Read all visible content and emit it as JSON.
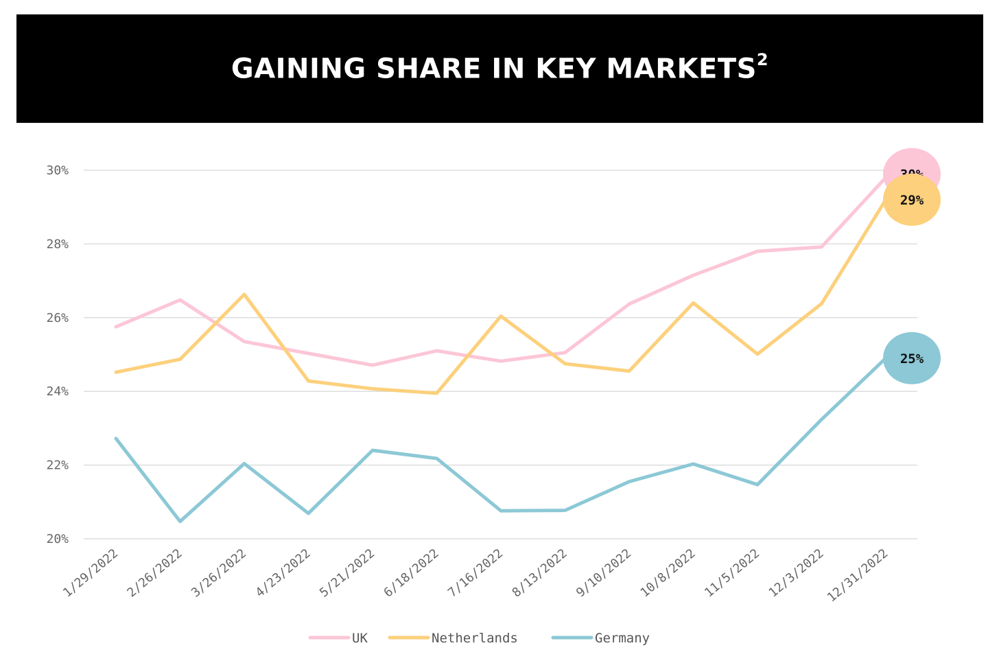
{
  "title": "GAINING SHARE IN KEY MARKETS",
  "title_superscript": "2",
  "colors": {
    "UK": "#fcc6d6",
    "Netherlands": "#fcd07c",
    "Germany": "#8cc8d6"
  },
  "chart_data": {
    "type": "line",
    "categories": [
      "1/29/2022",
      "2/26/2022",
      "3/26/2022",
      "4/23/2022",
      "5/21/2022",
      "6/18/2022",
      "7/16/2022",
      "8/13/2022",
      "9/10/2022",
      "10/8/2022",
      "11/5/2022",
      "12/3/2022",
      "12/31/2022"
    ],
    "series": [
      {
        "name": "UK",
        "values": [
          25.75,
          26.48,
          25.35,
          25.03,
          24.71,
          25.1,
          24.82,
          25.05,
          26.37,
          27.15,
          27.8,
          27.92,
          29.8
        ]
      },
      {
        "name": "Netherlands",
        "values": [
          24.52,
          24.87,
          26.63,
          24.28,
          24.07,
          23.95,
          26.04,
          24.75,
          24.55,
          26.4,
          25.01,
          26.38,
          29.2
        ]
      },
      {
        "name": "Germany",
        "values": [
          22.72,
          20.47,
          22.04,
          20.69,
          22.4,
          22.18,
          20.76,
          20.77,
          21.55,
          22.03,
          21.47,
          23.24,
          24.9
        ]
      }
    ],
    "y_ticks": [
      "20%",
      "22%",
      "24%",
      "26%",
      "28%",
      "30%"
    ],
    "y_tick_values": [
      20,
      22,
      24,
      26,
      28,
      30
    ],
    "ylim": [
      20,
      30
    ],
    "end_labels": [
      "30%",
      "29%",
      "25%"
    ],
    "grid": true,
    "legend_position": "bottom"
  }
}
